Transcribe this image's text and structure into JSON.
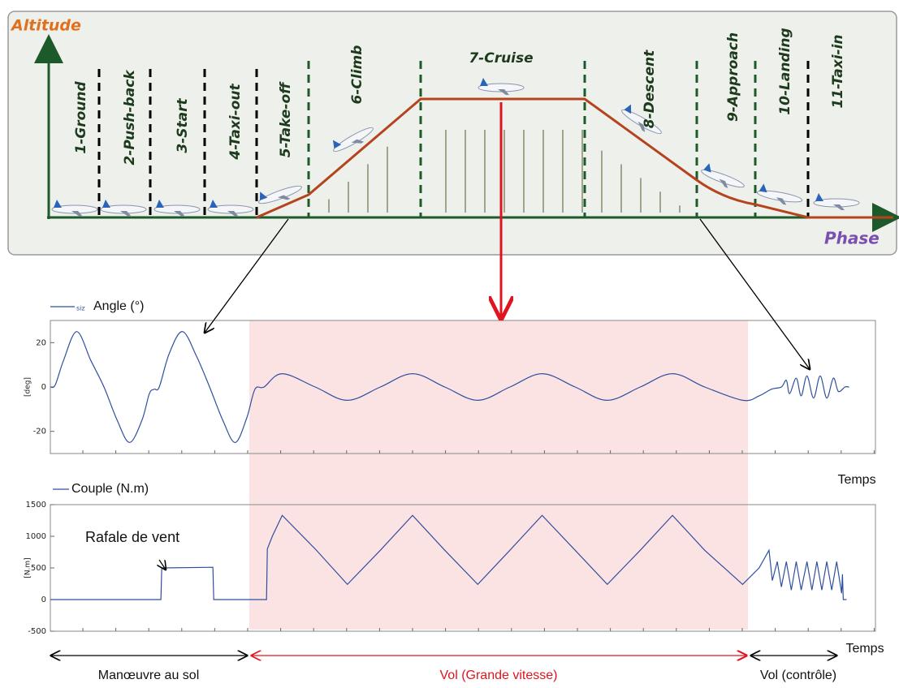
{
  "diagram": {
    "y_axis_label": "Altitude",
    "x_axis_label": "Phase",
    "phases": [
      "1-Ground",
      "2-Push-back",
      "3-Start",
      "4-Taxi-out",
      "5-Take-off",
      "6-Climb",
      "7-Cruise",
      "8-Descent",
      "9-Approach",
      "10-Landing",
      "11-Taxi-in"
    ]
  },
  "chart_data": [
    {
      "type": "line",
      "y_label": "[deg]",
      "x_label": "Temps",
      "legend_tag": "siz",
      "interpolation": "smooth",
      "xlim": [
        0,
        100
      ],
      "ylim": [
        -30,
        30
      ],
      "yticks": [
        20,
        0,
        -20
      ],
      "x": [
        0,
        0.6,
        1.6,
        3.2,
        4.9,
        6.5,
        8.1,
        9.6,
        11.1,
        12.0,
        12.6,
        13.2,
        14.4,
        16.0,
        17.7,
        19.3,
        20.9,
        22.4,
        23.8,
        24.8,
        25.9,
        28.1,
        32.1,
        36.0,
        40.0,
        43.9,
        47.8,
        51.8,
        55.7,
        59.6,
        63.6,
        67.5,
        71.5,
        75.4,
        79.3,
        83.9,
        85.9,
        87.4,
        88.6,
        89.2,
        89.6,
        90.4,
        91.0,
        91.7,
        92.5,
        93.3,
        94.1,
        94.9,
        95.5,
        96.3,
        96.8
      ],
      "series": [
        {
          "name": "Angle (°)",
          "color": "#2f4f9e",
          "values": [
            0,
            1,
            12,
            25,
            12,
            0,
            -15,
            -25,
            -15,
            -3,
            -1,
            0,
            15,
            25,
            14,
            0,
            -15,
            -25,
            -14,
            -1,
            0,
            6,
            0,
            -6,
            0,
            6,
            0,
            -6,
            0,
            6,
            0,
            -6,
            0,
            6,
            0,
            -6,
            -4,
            -1,
            0,
            3,
            -3,
            4,
            -4,
            5,
            -5,
            5,
            -5,
            4,
            -2,
            0,
            0
          ]
        }
      ]
    },
    {
      "type": "line",
      "y_label": "[N.m]",
      "x_label": "Temps",
      "interpolation": "linear",
      "xlim": [
        0,
        100
      ],
      "ylim": [
        -500,
        1500
      ],
      "yticks": [
        1500,
        1000,
        500,
        0,
        -500
      ],
      "annotation": "Rafale de vent",
      "x": [
        0,
        13.4,
        13.5,
        19.7,
        19.8,
        26.2,
        26.3,
        26.9,
        28.1,
        32.1,
        36.0,
        40.0,
        43.9,
        47.8,
        51.8,
        55.7,
        59.6,
        63.6,
        67.5,
        71.5,
        75.4,
        79.3,
        83.9,
        85.9,
        87.1,
        87.5,
        88.1,
        88.6,
        89.2,
        89.8,
        90.4,
        91.0,
        91.7,
        92.3,
        92.9,
        93.5,
        94.1,
        94.7,
        95.3,
        95.9,
        96.0,
        96.1,
        96.5
      ],
      "series": [
        {
          "name": "Couple (N.m)",
          "color": "#2f4f9e",
          "values": [
            0,
            0,
            500,
            510,
            0,
            0,
            800,
            1000,
            1330,
            800,
            240,
            780,
            1330,
            780,
            240,
            780,
            1330,
            780,
            240,
            780,
            1330,
            780,
            240,
            500,
            780,
            300,
            600,
            200,
            600,
            150,
            600,
            150,
            600,
            150,
            600,
            150,
            600,
            150,
            600,
            100,
            400,
            0,
            0
          ]
        }
      ]
    }
  ],
  "spans": [
    "Manœuvre au sol",
    "Vol (Grande vitesse)",
    "Vol (contrôle)"
  ]
}
